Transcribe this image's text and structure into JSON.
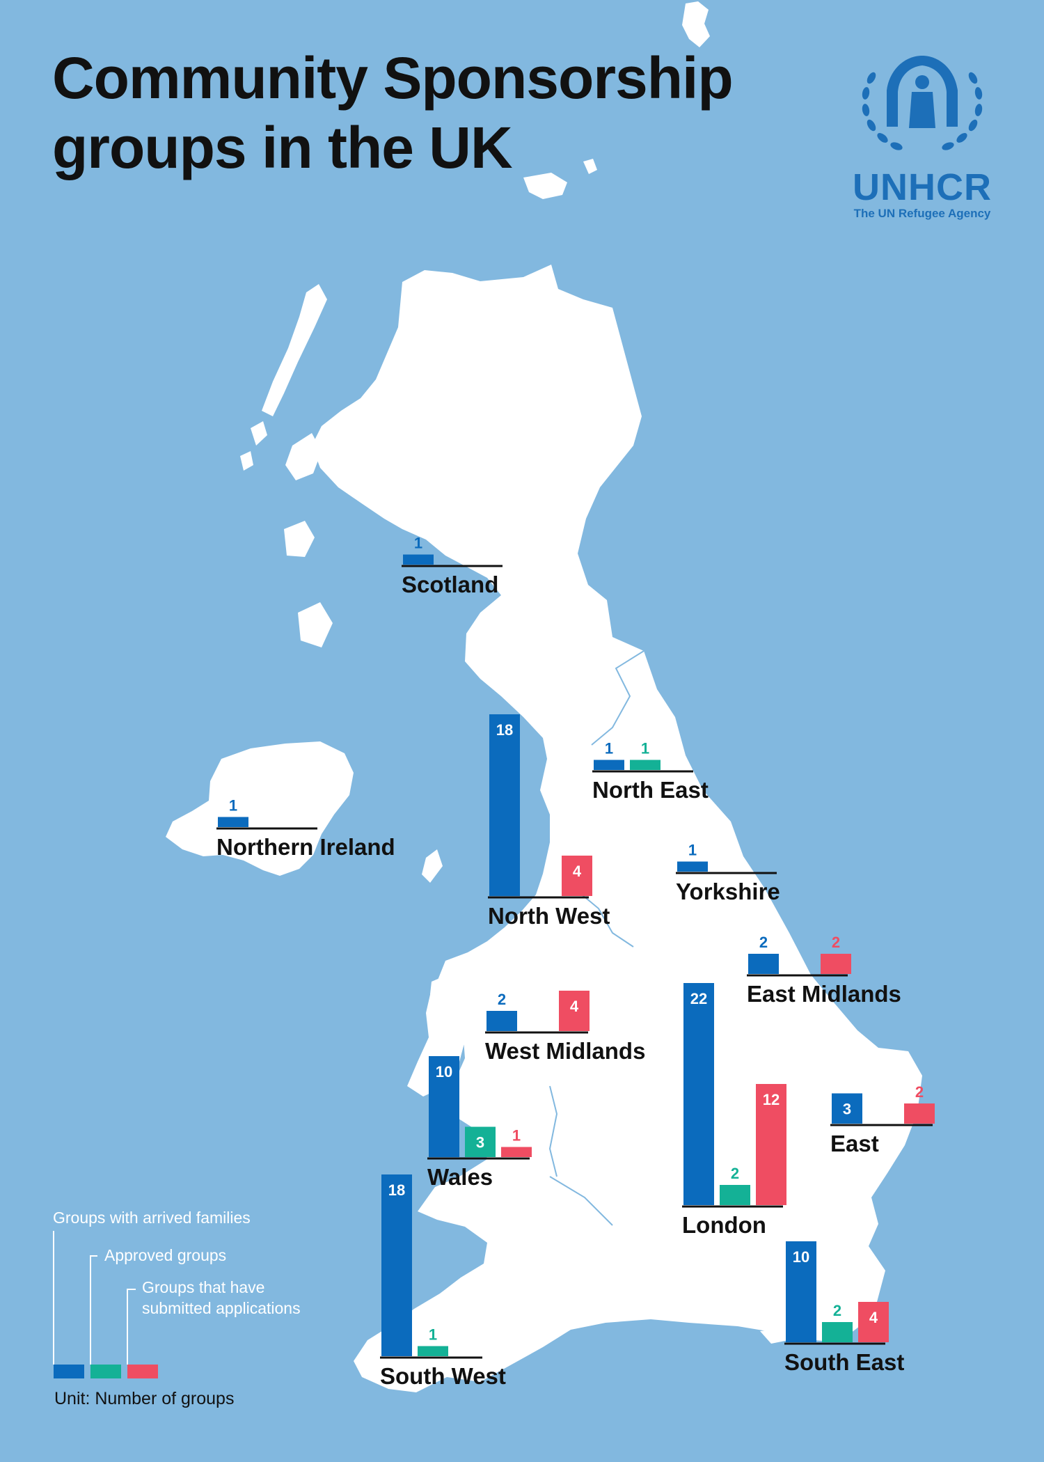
{
  "title": {
    "line1": "Community Sponsorship",
    "line2": "groups in the UK"
  },
  "logo": {
    "word": "UNHCR",
    "tagline": "The UN Refugee Agency",
    "icon": "unhcr-emblem-icon"
  },
  "colors": {
    "sea": "#82b8df",
    "land": "#ffffff",
    "arrived": "#0b6bbd",
    "approved": "#14b196",
    "submitted": "#ef4d62",
    "text": "#111111"
  },
  "legend": {
    "arrived": "Groups with arrived families",
    "approved": "Approved groups",
    "submitted_line1": "Groups that have",
    "submitted_line2": "submitted applications",
    "unit": "Unit: Number of groups"
  },
  "chart_data": {
    "type": "bar",
    "unit": "Number of groups",
    "series_names": [
      "Groups with arrived families",
      "Approved groups",
      "Groups that have submitted applications"
    ],
    "regions": [
      {
        "name": "Scotland",
        "arrived": 1,
        "approved": null,
        "submitted": null
      },
      {
        "name": "Northern Ireland",
        "arrived": 1,
        "approved": null,
        "submitted": null
      },
      {
        "name": "North West",
        "arrived": 18,
        "approved": null,
        "submitted": 4
      },
      {
        "name": "North East",
        "arrived": 1,
        "approved": 1,
        "submitted": null
      },
      {
        "name": "Yorkshire",
        "arrived": 1,
        "approved": null,
        "submitted": null
      },
      {
        "name": "East Midlands",
        "arrived": 2,
        "approved": null,
        "submitted": 2
      },
      {
        "name": "West Midlands",
        "arrived": 2,
        "approved": null,
        "submitted": 4
      },
      {
        "name": "Wales",
        "arrived": 10,
        "approved": 3,
        "submitted": 1
      },
      {
        "name": "London",
        "arrived": 22,
        "approved": 2,
        "submitted": 12
      },
      {
        "name": "East",
        "arrived": 3,
        "approved": null,
        "submitted": 2
      },
      {
        "name": "South West",
        "arrived": 18,
        "approved": 1,
        "submitted": null
      },
      {
        "name": "South East",
        "arrived": 10,
        "approved": 2,
        "submitted": 4
      }
    ]
  }
}
